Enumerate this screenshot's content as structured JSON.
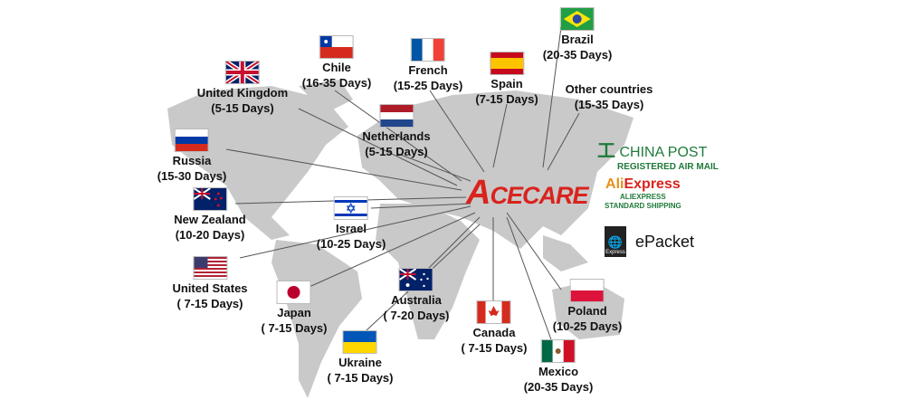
{
  "brand": {
    "logo_text": "ACECARE",
    "color": "#d9231d"
  },
  "destinations": [
    {
      "id": "brazil",
      "country": "Brazil",
      "days": "(20-35 Days)",
      "flag": "brazil"
    },
    {
      "id": "chile",
      "country": "Chile",
      "days": "(16-35 Days)",
      "flag": "chile"
    },
    {
      "id": "french",
      "country": "French",
      "days": "(15-25 Days)",
      "flag": "france"
    },
    {
      "id": "spain",
      "country": "Spain",
      "days": "(7-15 Days)",
      "flag": "spain"
    },
    {
      "id": "uk",
      "country": "United Kingdom",
      "days": "(5-15 Days)",
      "flag": "uk"
    },
    {
      "id": "other",
      "country": "Other countries",
      "days": "(15-35 Days)",
      "flag": ""
    },
    {
      "id": "netherlands",
      "country": "Netherlands",
      "days": "(5-15 Days)",
      "flag": "netherlands"
    },
    {
      "id": "russia",
      "country": "Russia",
      "days": "(15-30 Days)",
      "flag": "russia"
    },
    {
      "id": "nz",
      "country": "New Zealand",
      "days": "(10-20 Days)",
      "flag": "newzealand"
    },
    {
      "id": "israel",
      "country": "Israel",
      "days": "(10-25 Days)",
      "flag": "israel"
    },
    {
      "id": "us",
      "country": "United States",
      "days": "( 7-15 Days)",
      "flag": "usa"
    },
    {
      "id": "japan",
      "country": "Japan",
      "days": "( 7-15 Days)",
      "flag": "japan"
    },
    {
      "id": "australia",
      "country": "Australia",
      "days": "( 7-20 Days)",
      "flag": "australia"
    },
    {
      "id": "canada",
      "country": "Canada",
      "days": "( 7-15 Days)",
      "flag": "canada"
    },
    {
      "id": "poland",
      "country": "Poland",
      "days": "(10-25 Days)",
      "flag": "poland"
    },
    {
      "id": "ukraine",
      "country": "Ukraine",
      "days": "( 7-15 Days)",
      "flag": "ukraine"
    },
    {
      "id": "mexico",
      "country": "Mexico",
      "days": "(20-35 Days)",
      "flag": "mexico"
    }
  ],
  "carriers": {
    "china_post": {
      "name": "CHINA POST",
      "sub": "REGISTERED AIR MAIL",
      "color": "#1f7a3a"
    },
    "aliexpress": {
      "name_a": "Ali",
      "name_b": "Express",
      "sub1": "ALIEXPRESS",
      "sub2": "STANDARD SHIPPING"
    },
    "epacket": {
      "name": "ePacket",
      "badge": "Express"
    }
  }
}
